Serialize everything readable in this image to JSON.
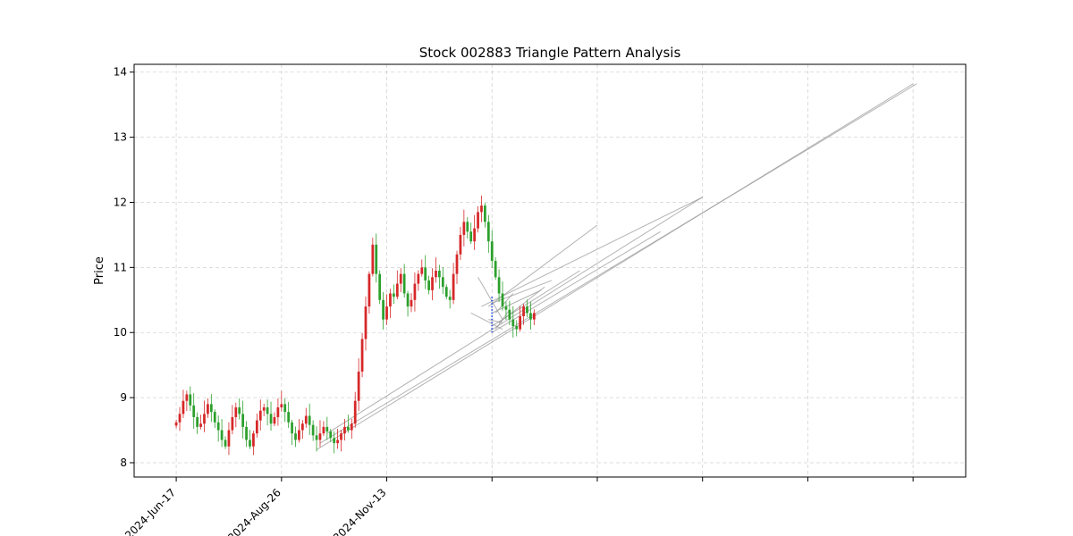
{
  "chart_data": {
    "type": "candlestick",
    "title": "Stock 002883 Triangle Pattern Analysis",
    "xlabel": "",
    "ylabel": "Price",
    "ylim": [
      7.78,
      14.12
    ],
    "xlim_days": [
      -12,
      225
    ],
    "y_ticks": [
      8,
      9,
      10,
      11,
      12,
      13,
      14
    ],
    "x_ticks": [
      {
        "day": 0,
        "label": "2024-Jun-17"
      },
      {
        "day": 30,
        "label": "2024-Aug-26"
      },
      {
        "day": 60,
        "label": "2024-Nov-13"
      },
      {
        "day": 90,
        "label": ""
      },
      {
        "day": 120,
        "label": ""
      },
      {
        "day": 150,
        "label": ""
      },
      {
        "day": 180,
        "label": ""
      },
      {
        "day": 210,
        "label": ""
      }
    ],
    "grid": true,
    "colors": {
      "up": "#d62728",
      "down": "#2ca02c",
      "line": "#9a9a9a",
      "marker": "#3b5bdb"
    },
    "closes": [
      8.62,
      8.75,
      8.95,
      9.05,
      8.88,
      8.7,
      8.55,
      8.6,
      8.75,
      8.9,
      8.78,
      8.62,
      8.5,
      8.35,
      8.25,
      8.5,
      8.7,
      8.85,
      8.75,
      8.55,
      8.35,
      8.25,
      8.45,
      8.65,
      8.8,
      8.85,
      8.75,
      8.6,
      8.7,
      8.85,
      8.9,
      8.78,
      8.62,
      8.45,
      8.35,
      8.5,
      8.6,
      8.72,
      8.58,
      8.42,
      8.35,
      8.45,
      8.55,
      8.48,
      8.38,
      8.3,
      8.35,
      8.45,
      8.55,
      8.5,
      8.6,
      8.95,
      9.4,
      9.9,
      10.4,
      10.9,
      11.35,
      10.9,
      10.5,
      10.2,
      10.4,
      10.6,
      10.55,
      10.75,
      10.9,
      10.6,
      10.4,
      10.5,
      10.75,
      10.9,
      11.0,
      10.8,
      10.65,
      10.85,
      10.95,
      10.85,
      10.7,
      10.55,
      10.5,
      10.9,
      11.2,
      11.5,
      11.7,
      11.55,
      11.4,
      11.6,
      11.85,
      11.95,
      11.7,
      11.4,
      11.1,
      10.85,
      10.6,
      10.4,
      10.35,
      10.2,
      10.1,
      10.05,
      10.25,
      10.4,
      10.3,
      10.2,
      10.3
    ],
    "lines": [
      {
        "x1": 40,
        "y1": 8.2,
        "x2": 210,
        "y2": 13.82
      },
      {
        "x1": 41,
        "y1": 8.3,
        "x2": 211,
        "y2": 13.82
      },
      {
        "x1": 43,
        "y1": 8.45,
        "x2": 150,
        "y2": 12.08
      },
      {
        "x1": 86,
        "y1": 10.85,
        "x2": 93,
        "y2": 10.2
      },
      {
        "x1": 84,
        "y1": 10.3,
        "x2": 93,
        "y2": 10.05
      },
      {
        "x1": 87,
        "y1": 10.4,
        "x2": 150,
        "y2": 12.08
      },
      {
        "x1": 89,
        "y1": 10.4,
        "x2": 120,
        "y2": 11.65
      },
      {
        "x1": 90,
        "y1": 10.45,
        "x2": 107,
        "y2": 10.8
      },
      {
        "x1": 90,
        "y1": 10.3,
        "x2": 104,
        "y2": 10.65
      },
      {
        "x1": 90,
        "y1": 10.0,
        "x2": 138,
        "y2": 11.55
      },
      {
        "x1": 90,
        "y1": 10.1,
        "x2": 115,
        "y2": 10.95
      },
      {
        "x1": 91,
        "y1": 10.3,
        "x2": 96,
        "y2": 10.6
      },
      {
        "x1": 92,
        "y1": 10.15,
        "x2": 105,
        "y2": 10.7
      },
      {
        "x1": 91,
        "y1": 10.05,
        "x2": 95,
        "y2": 10.35
      },
      {
        "x1": 89,
        "y1": 10.2,
        "x2": 93,
        "y2": 10.15
      }
    ],
    "marker": {
      "x": 90,
      "y_from": 10.0,
      "y_to": 10.55
    }
  }
}
